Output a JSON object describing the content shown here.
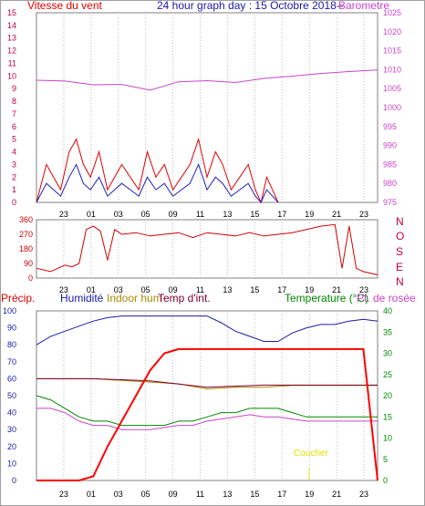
{
  "colors": {
    "wind": "#e00000",
    "wind_axis": "#c00040",
    "wind_avg": "#2020c0",
    "baro": "#cc44cc",
    "dir": "#d00000",
    "rain": "#ff0000",
    "hum": "#1a1aaa",
    "indoor_hum": "#aa8800",
    "indoor_temp": "#800030",
    "temp": "#008800",
    "dew": "#cc44cc",
    "title": "#1a1aaa",
    "grid": "#808080",
    "sunset": "#e0e000"
  },
  "header": {
    "title": "24 hour graph day : 15 Octobre 2018--",
    "wind_label": "Vitesse du vent",
    "baro_label": "Barometre"
  },
  "mid": {
    "dir_letters": [
      "N",
      "O",
      "S",
      "E",
      "N"
    ]
  },
  "bottom": {
    "precip_label": "Précip.",
    "hum_label": "Humidité",
    "indoor_hum_label": "Indoor hum",
    "indoor_temp_label": "Temp d'int.",
    "temp_label": "Temperature (°C)",
    "dew_label": "Pt. de rosée",
    "sunset_label": "Coucher"
  },
  "chart_data": [
    {
      "type": "line",
      "title": "Vitesse du vent / Barometre",
      "x_ticks": [
        "23",
        "01",
        "03",
        "05",
        "09",
        "11",
        "13",
        "15",
        "17",
        "19",
        "21",
        "23"
      ],
      "y_left": {
        "label": "Vitesse du vent",
        "ticks": [
          0,
          1,
          2,
          3,
          4,
          5,
          6,
          7,
          8,
          9,
          10,
          11,
          12,
          13,
          14,
          15
        ],
        "ylim": [
          0,
          15
        ]
      },
      "y_right": {
        "label": "Barometre",
        "ticks": [
          975,
          980,
          985,
          990,
          995,
          1000,
          1005,
          1010,
          1015,
          1020,
          1025
        ],
        "ylim": [
          975,
          1025
        ]
      },
      "series": [
        {
          "name": "Barometre",
          "axis": "right",
          "x": [
            0,
            2,
            4,
            6,
            8,
            10,
            12,
            14,
            16,
            18,
            20,
            22,
            24
          ],
          "values": [
            1007.2,
            1007.0,
            1006.0,
            1006.1,
            1004.6,
            1006.8,
            1007.1,
            1006.6,
            1007.7,
            1008.3,
            1009.0,
            1009.5,
            1009.9
          ]
        },
        {
          "name": "Vitesse du vent (rafales)",
          "axis": "left",
          "x": [
            0,
            0.7,
            1.2,
            1.7,
            2.3,
            2.8,
            3.3,
            3.8,
            4.4,
            5.0,
            5.5,
            6.0,
            6.6,
            7.2,
            7.8,
            8.4,
            9.0,
            9.6,
            10.2,
            10.8,
            11.4,
            12.0,
            12.6,
            13.1,
            13.7,
            14.3,
            14.9,
            15.4,
            15.8,
            16.2,
            16.6,
            17.0
          ],
          "values": [
            0,
            3,
            2,
            1,
            4,
            5,
            3,
            2,
            4,
            1,
            2,
            3,
            2,
            1,
            4,
            2,
            3,
            1,
            2,
            3,
            5,
            2,
            4,
            3,
            1,
            2,
            3,
            1,
            0,
            2,
            1,
            0
          ]
        },
        {
          "name": "Vitesse du vent (moyenne)",
          "axis": "left",
          "x": [
            0,
            0.7,
            1.2,
            1.7,
            2.3,
            2.8,
            3.3,
            3.8,
            4.4,
            5.0,
            5.5,
            6.0,
            6.6,
            7.2,
            7.8,
            8.4,
            9.0,
            9.6,
            10.2,
            10.8,
            11.4,
            12.0,
            12.6,
            13.1,
            13.7,
            14.3,
            14.9,
            15.4,
            15.8,
            16.2,
            16.6,
            17.0
          ],
          "values": [
            0,
            1.5,
            1,
            0.5,
            2,
            3,
            1.5,
            1,
            2,
            0.5,
            1,
            1.5,
            1,
            0.5,
            2,
            1,
            1.5,
            0.5,
            1,
            1.5,
            3,
            1,
            2,
            1.5,
            0.5,
            1,
            1.5,
            0.5,
            0,
            1,
            0.5,
            0
          ]
        }
      ]
    },
    {
      "type": "line",
      "title": "Direction du vent",
      "x_ticks": [
        "23",
        "01",
        "03",
        "05",
        "09",
        "11",
        "13",
        "15",
        "17",
        "19",
        "21",
        "23"
      ],
      "y_left": {
        "ticks": [
          0,
          90,
          180,
          270,
          360
        ],
        "ylim": [
          0,
          360
        ]
      },
      "series": [
        {
          "name": "Direction",
          "x": [
            0,
            1,
            2,
            2.5,
            3,
            3.5,
            4,
            4.5,
            5,
            5.5,
            6,
            7,
            8,
            9,
            10,
            11,
            12,
            13,
            14,
            15,
            16,
            17,
            18,
            19,
            20,
            21,
            21.5,
            22,
            22.5,
            23,
            24
          ],
          "values": [
            60,
            40,
            80,
            70,
            90,
            300,
            320,
            290,
            110,
            300,
            270,
            280,
            260,
            270,
            280,
            250,
            280,
            270,
            260,
            280,
            260,
            270,
            280,
            300,
            320,
            330,
            60,
            320,
            60,
            40,
            20
          ]
        }
      ]
    },
    {
      "type": "line",
      "title": "Précip. / Humidité / Temperature",
      "x_ticks": [
        "23",
        "01",
        "03",
        "05",
        "09",
        "11",
        "13",
        "15",
        "17",
        "19",
        "21",
        "23"
      ],
      "y_left": {
        "label": "Précip.",
        "ticks": [
          0,
          10,
          20,
          30,
          40,
          50,
          60,
          70,
          80,
          90,
          100
        ],
        "ylim": [
          0,
          100
        ]
      },
      "y_right": {
        "label": "Temperature (°C)",
        "ticks": [
          0,
          5,
          10,
          15,
          20,
          25,
          30,
          35,
          40
        ],
        "ylim": [
          0,
          40
        ]
      },
      "series": [
        {
          "name": "Humidité",
          "axis": "left",
          "x": [
            0,
            1,
            2,
            3,
            4,
            5,
            6,
            7,
            8,
            9,
            10,
            11,
            12,
            13,
            14,
            15,
            16,
            17,
            18,
            19,
            20,
            21,
            22,
            23,
            24
          ],
          "values": [
            80,
            85,
            88,
            91,
            94,
            96,
            97,
            97,
            97,
            97,
            97,
            97,
            97,
            93,
            88,
            85,
            82,
            82,
            87,
            90,
            92,
            92,
            94,
            95,
            94
          ]
        },
        {
          "name": "Indoor hum",
          "axis": "left",
          "x": [
            0,
            2,
            4,
            6,
            8,
            10,
            12,
            14,
            16,
            18,
            20,
            22,
            24
          ],
          "values": [
            60,
            60,
            60,
            59,
            58,
            57,
            54,
            55,
            55,
            56,
            56,
            56,
            56
          ]
        },
        {
          "name": "Temp d'int.",
          "axis": "right",
          "x": [
            0,
            4,
            8,
            12,
            16,
            20,
            24
          ],
          "values": [
            24,
            24,
            23.5,
            22,
            22.5,
            22.5,
            22.5
          ]
        },
        {
          "name": "Temperature (°C)",
          "axis": "right",
          "x": [
            0,
            1,
            2,
            3,
            4,
            5,
            6,
            7,
            8,
            9,
            10,
            11,
            12,
            13,
            14,
            15,
            16,
            17,
            18,
            19,
            20,
            21,
            22,
            23,
            24
          ],
          "values": [
            20,
            19,
            17,
            15,
            14,
            14,
            13,
            13,
            13,
            13,
            14,
            14,
            15,
            16,
            16,
            17,
            17,
            17,
            16,
            15,
            15,
            15,
            15,
            15,
            15
          ]
        },
        {
          "name": "Pt. de rosée",
          "axis": "right",
          "x": [
            0,
            1,
            2,
            3,
            4,
            5,
            6,
            7,
            8,
            9,
            10,
            11,
            12,
            13,
            14,
            15,
            16,
            17,
            18,
            19,
            20,
            21,
            22,
            23,
            24
          ],
          "values": [
            17,
            17,
            16,
            14,
            13,
            13,
            12,
            12,
            12,
            12.5,
            13,
            13,
            14,
            14.5,
            15,
            15.5,
            15,
            15,
            14.5,
            14,
            14,
            14,
            14,
            14,
            14
          ]
        },
        {
          "name": "Précip.",
          "axis": "right",
          "x": [
            0,
            3,
            4,
            5,
            6,
            7,
            8,
            9,
            10,
            11,
            12,
            13,
            14,
            15,
            16,
            17,
            18,
            19,
            20,
            21,
            22,
            23,
            24
          ],
          "values": [
            0,
            0,
            1,
            8,
            14,
            20,
            26,
            30,
            31,
            31,
            31,
            31,
            31,
            31,
            31,
            31,
            31,
            31,
            31,
            31,
            31,
            31,
            0
          ]
        }
      ]
    }
  ]
}
